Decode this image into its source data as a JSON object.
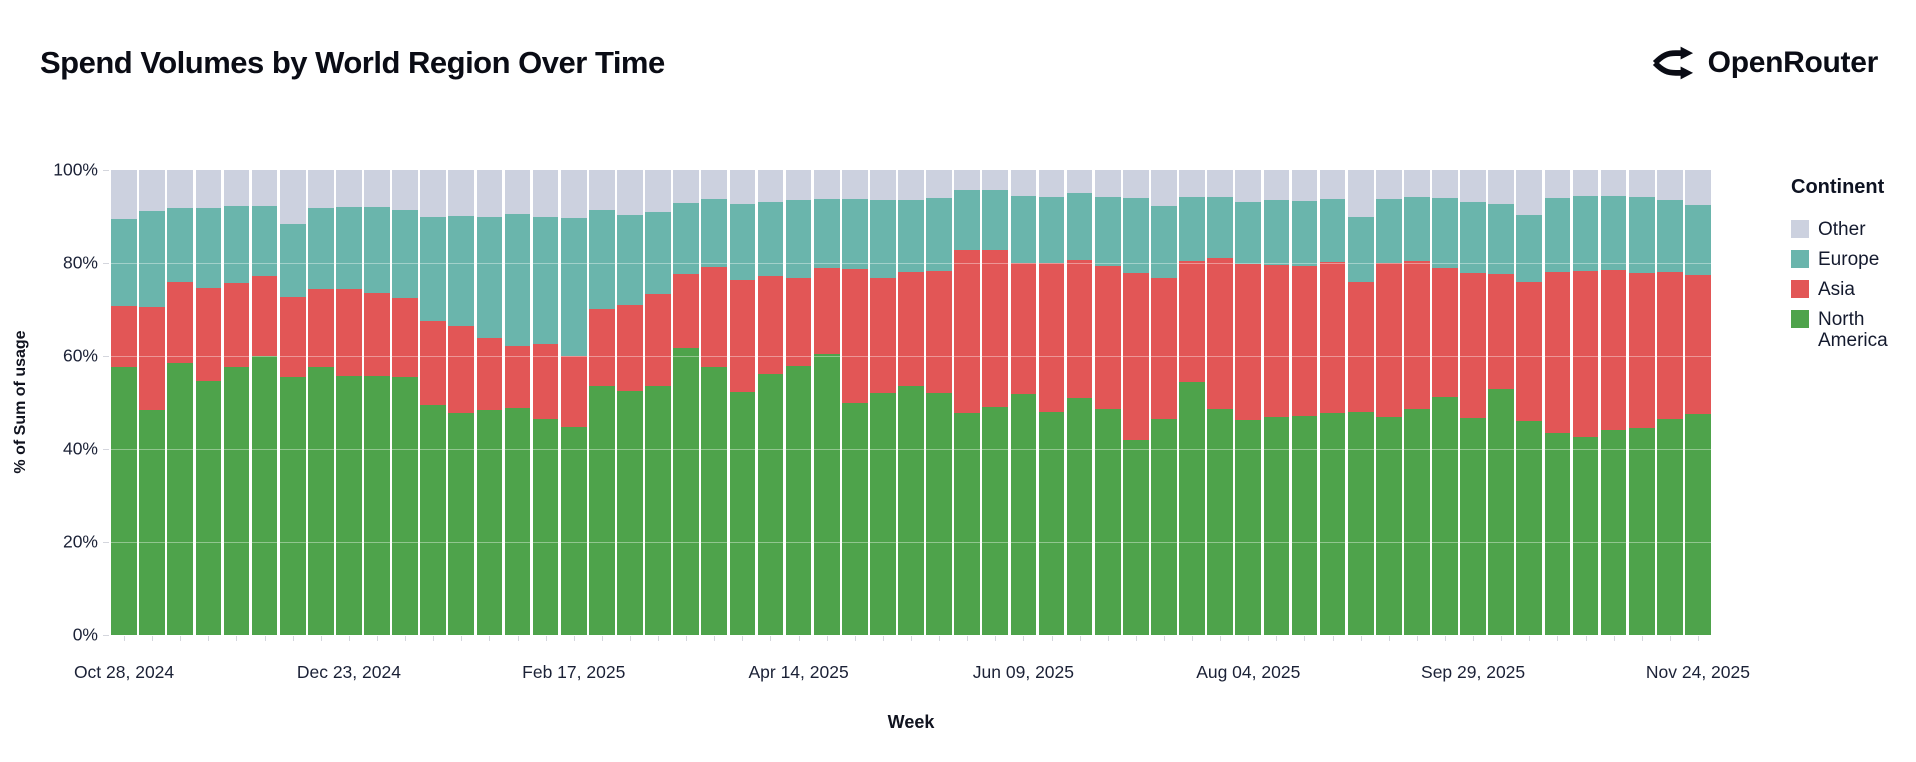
{
  "header": {
    "title": "Spend Volumes by World Region Over Time",
    "brand": "OpenRouter"
  },
  "chart_data": {
    "type": "bar",
    "stacked": true,
    "normalized": true,
    "title": "Spend Volumes by World Region Over Time",
    "xlabel": "Week",
    "ylabel": "% of Sum of usage",
    "ylim": [
      0,
      100
    ],
    "grid": "faint white overlay lines at 20/40/60/80%",
    "y_ticks": [
      "0%",
      "20%",
      "40%",
      "60%",
      "80%",
      "100%"
    ],
    "x_ticks_shown": [
      "Oct 28, 2024",
      "Dec 23, 2024",
      "Feb 17, 2025",
      "Apr 14, 2025",
      "Jun 09, 2025",
      "Aug 04, 2025",
      "Sep 29, 2025",
      "Nov 24, 2025"
    ],
    "x_tick_label_interval": 8,
    "legend": {
      "title": "Continent",
      "position": "right",
      "entries": [
        {
          "label": "Other",
          "color": "#ccd1df"
        },
        {
          "label": "Europe",
          "color": "#6ab5ac"
        },
        {
          "label": "Asia",
          "color": "#e25656"
        },
        {
          "label": "North America",
          "color": "#4ea34b"
        }
      ]
    },
    "categories": [
      "Oct 28, 2024",
      "Nov 04, 2024",
      "Nov 11, 2024",
      "Nov 18, 2024",
      "Nov 25, 2024",
      "Dec 02, 2024",
      "Dec 09, 2024",
      "Dec 16, 2024",
      "Dec 23, 2024",
      "Dec 30, 2024",
      "Jan 06, 2025",
      "Jan 13, 2025",
      "Jan 20, 2025",
      "Jan 27, 2025",
      "Feb 03, 2025",
      "Feb 10, 2025",
      "Feb 17, 2025",
      "Feb 24, 2025",
      "Mar 03, 2025",
      "Mar 10, 2025",
      "Mar 17, 2025",
      "Mar 24, 2025",
      "Mar 31, 2025",
      "Apr 07, 2025",
      "Apr 14, 2025",
      "Apr 21, 2025",
      "Apr 28, 2025",
      "May 05, 2025",
      "May 12, 2025",
      "May 19, 2025",
      "May 26, 2025",
      "Jun 02, 2025",
      "Jun 09, 2025",
      "Jun 16, 2025",
      "Jun 23, 2025",
      "Jun 30, 2025",
      "Jul 07, 2025",
      "Jul 14, 2025",
      "Jul 21, 2025",
      "Jul 28, 2025",
      "Aug 04, 2025",
      "Aug 11, 2025",
      "Aug 18, 2025",
      "Aug 25, 2025",
      "Sep 01, 2025",
      "Sep 08, 2025",
      "Sep 15, 2025",
      "Sep 22, 2025",
      "Sep 29, 2025",
      "Oct 06, 2025",
      "Oct 13, 2025",
      "Oct 20, 2025",
      "Oct 27, 2025",
      "Nov 03, 2025",
      "Nov 10, 2025",
      "Nov 17, 2025",
      "Nov 24, 2025"
    ],
    "series": [
      {
        "name": "North America",
        "color": "#4ea34b",
        "values": [
          57.7,
          48.4,
          58.6,
          54.7,
          57.7,
          60.0,
          55.5,
          57.7,
          55.7,
          55.7,
          55.5,
          49.5,
          47.7,
          48.4,
          48.8,
          46.5,
          44.8,
          53.6,
          52.5,
          53.5,
          61.8,
          57.7,
          52.2,
          56.1,
          57.9,
          60.5,
          49.8,
          52.0,
          53.6,
          52.0,
          47.7,
          49.0,
          51.8,
          47.9,
          50.9,
          48.6,
          42.0,
          46.5,
          54.3,
          48.6,
          46.3,
          46.8,
          47.0,
          47.7,
          47.9,
          46.9,
          48.6,
          51.2,
          46.7,
          52.8,
          46.1,
          43.5,
          42.5,
          44.0,
          44.5,
          46.5,
          47.5
        ]
      },
      {
        "name": "Asia",
        "color": "#e25656",
        "values": [
          13.1,
          22.2,
          17.4,
          20.0,
          18.0,
          17.2,
          17.1,
          16.7,
          18.6,
          17.8,
          17.0,
          18.0,
          18.7,
          15.5,
          13.3,
          16.0,
          15.3,
          16.5,
          18.5,
          19.8,
          15.9,
          21.5,
          24.2,
          21.2,
          18.8,
          18.4,
          28.9,
          24.7,
          24.4,
          26.3,
          35.1,
          33.9,
          28.1,
          32.2,
          29.7,
          30.8,
          35.8,
          30.2,
          26.1,
          32.5,
          33.4,
          32.8,
          32.4,
          32.6,
          28.0,
          33.0,
          31.8,
          27.8,
          31.1,
          24.8,
          29.9,
          34.5,
          35.8,
          34.5,
          33.3,
          31.5,
          30.0
        ]
      },
      {
        "name": "Europe",
        "color": "#6ab5ac",
        "values": [
          18.7,
          20.5,
          15.8,
          17.1,
          16.5,
          15.0,
          15.7,
          17.4,
          17.7,
          18.5,
          19.0,
          22.5,
          23.8,
          26.0,
          28.5,
          27.4,
          29.6,
          21.4,
          19.4,
          17.7,
          15.3,
          14.6,
          16.3,
          15.9,
          16.8,
          14.9,
          15.0,
          16.9,
          15.6,
          15.6,
          12.8,
          12.7,
          14.6,
          14.2,
          14.4,
          14.8,
          16.2,
          15.5,
          13.8,
          13.1,
          13.5,
          14.0,
          14.0,
          13.5,
          13.9,
          13.9,
          13.8,
          14.9,
          15.3,
          15.1,
          14.4,
          16.0,
          16.1,
          15.9,
          16.4,
          15.5,
          15.0
        ]
      },
      {
        "name": "Other",
        "color": "#ccd1df",
        "values": [
          10.5,
          8.9,
          8.2,
          8.2,
          7.8,
          7.8,
          11.7,
          8.2,
          8.0,
          8.0,
          8.5,
          10.0,
          9.8,
          10.1,
          9.4,
          10.1,
          10.3,
          8.5,
          9.6,
          9.0,
          7.0,
          6.2,
          7.3,
          6.8,
          6.5,
          6.2,
          6.3,
          6.4,
          6.4,
          6.1,
          4.4,
          4.4,
          5.5,
          5.7,
          5.0,
          5.8,
          6.0,
          7.8,
          5.8,
          5.8,
          6.8,
          6.4,
          6.6,
          6.2,
          10.2,
          6.2,
          5.8,
          6.1,
          6.9,
          7.3,
          9.6,
          6.0,
          5.6,
          5.6,
          5.8,
          6.5,
          7.5
        ]
      }
    ]
  },
  "colors": {
    "background": "#ffffff",
    "axis_text": "#1b2136",
    "tick_mark": "#d4d6dd",
    "title_text": "#0a0c15"
  }
}
